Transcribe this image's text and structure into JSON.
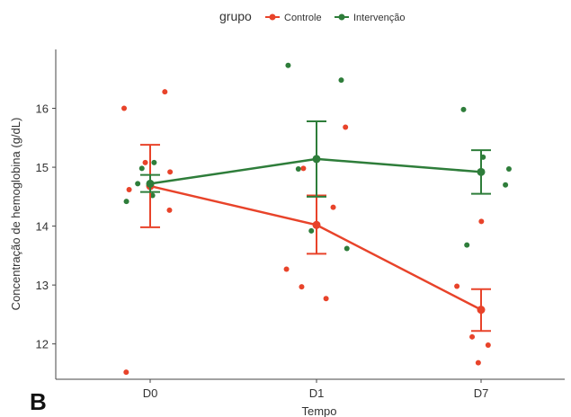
{
  "panel_label": "B",
  "chart_data": {
    "type": "line",
    "xlabel": "Tempo",
    "ylabel": "Concentração de hemoglobina (g/dL)",
    "categories": [
      "D0",
      "D1",
      "D7"
    ],
    "ylim": [
      11.4,
      17.0
    ],
    "yticks": [
      12,
      13,
      14,
      15,
      16
    ],
    "grid": false,
    "legend": {
      "title": "grupo",
      "placement": "top",
      "entries": [
        "Controle",
        "Intervenção"
      ]
    },
    "series": [
      {
        "name": "Controle",
        "color": "#e8432a",
        "means": [
          14.68,
          14.02,
          12.58
        ],
        "err_low": [
          13.98,
          13.53,
          12.22
        ],
        "err_high": [
          15.38,
          14.52,
          12.93
        ],
        "points": [
          [
            0,
            16.28
          ],
          [
            0,
            16.0
          ],
          [
            0,
            15.08
          ],
          [
            0,
            14.92
          ],
          [
            0,
            14.62
          ],
          [
            0,
            14.27
          ],
          [
            0,
            11.52
          ],
          [
            1,
            15.68
          ],
          [
            1,
            14.98
          ],
          [
            1,
            14.32
          ],
          [
            1,
            13.27
          ],
          [
            1,
            12.97
          ],
          [
            1,
            12.77
          ],
          [
            2,
            14.08
          ],
          [
            2,
            12.98
          ],
          [
            2,
            12.12
          ],
          [
            2,
            11.98
          ],
          [
            2,
            11.68
          ]
        ]
      },
      {
        "name": "Intervenção",
        "color": "#2e7d3a",
        "means": [
          14.72,
          15.14,
          14.92
        ],
        "err_low": [
          14.58,
          14.5,
          14.55
        ],
        "err_high": [
          14.87,
          15.78,
          15.29
        ],
        "points": [
          [
            0,
            15.08
          ],
          [
            0,
            14.98
          ],
          [
            0,
            14.72
          ],
          [
            0,
            14.52
          ],
          [
            0,
            14.42
          ],
          [
            1,
            16.73
          ],
          [
            1,
            16.48
          ],
          [
            1,
            14.97
          ],
          [
            1,
            13.92
          ],
          [
            1,
            13.62
          ],
          [
            2,
            15.98
          ],
          [
            2,
            15.17
          ],
          [
            2,
            14.97
          ],
          [
            2,
            14.7
          ],
          [
            2,
            13.68
          ]
        ]
      }
    ]
  }
}
